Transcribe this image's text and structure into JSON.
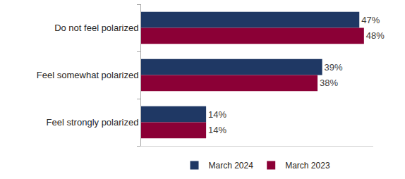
{
  "chart_data": {
    "type": "bar",
    "orientation": "horizontal",
    "categories": [
      "Do not feel polarized",
      "Feel somewhat polarized",
      "Feel strongly polarized"
    ],
    "series": [
      {
        "name": "March 2024",
        "color": "#1f3864",
        "values": [
          47,
          39,
          14
        ],
        "value_labels": [
          "47%",
          "39%",
          "14%"
        ]
      },
      {
        "name": "March 2023",
        "color": "#8b0036",
        "values": [
          48,
          38,
          14
        ],
        "value_labels": [
          "48%",
          "38%",
          "14%"
        ]
      }
    ],
    "xlim": [
      0,
      50
    ],
    "xticks": [],
    "grid": false,
    "legend": "bottom",
    "data_labels": true,
    "tick_labels": "y"
  }
}
